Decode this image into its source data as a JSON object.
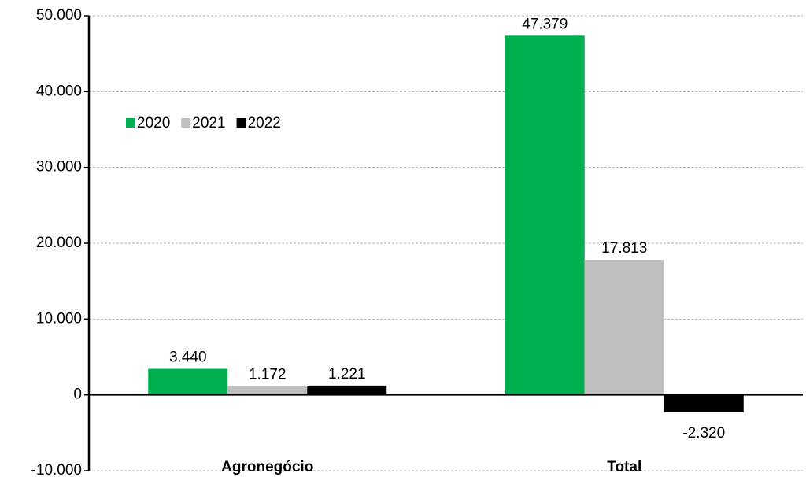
{
  "chart_data": {
    "type": "bar",
    "categories": [
      "Agronegócio",
      "Total"
    ],
    "series": [
      {
        "name": "2020",
        "color": "#00b050",
        "values": [
          3440,
          47379
        ],
        "value_labels": [
          "3.440",
          "47.379"
        ]
      },
      {
        "name": "2021",
        "color": "#bfbfbf",
        "values": [
          1172,
          17813
        ],
        "value_labels": [
          "1.172",
          "17.813"
        ]
      },
      {
        "name": "2022",
        "color": "#000000",
        "values": [
          1221,
          -2320
        ],
        "value_labels": [
          "1.221",
          "-2.320"
        ]
      }
    ],
    "ylim": [
      -10000,
      50000
    ],
    "yticks": [
      {
        "value": -10000,
        "label": "-10.000"
      },
      0,
      {
        "value": 10000,
        "label": "10.000"
      },
      {
        "value": 20000,
        "label": "20.000"
      },
      {
        "value": 30000,
        "label": "30.000"
      },
      {
        "value": 40000,
        "label": "40.000"
      },
      {
        "value": 50000,
        "label": "50.000"
      }
    ],
    "grid": true,
    "legend": "upper-left"
  }
}
